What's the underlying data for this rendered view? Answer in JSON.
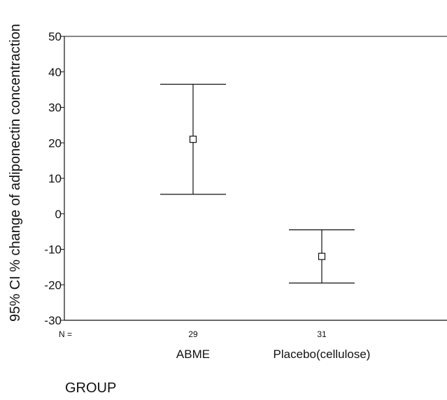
{
  "chart_data": {
    "type": "errorbar",
    "title": "",
    "xlabel": "GROUP",
    "ylabel": "95% CI % change of adiponectin concentraction",
    "ylim": [
      -30,
      50
    ],
    "yticks": [
      50,
      40,
      30,
      20,
      10,
      0,
      -10,
      -20,
      -30
    ],
    "ytick_labels": [
      "50",
      "40",
      "30",
      "20",
      "10",
      "0",
      "-10",
      "-20",
      "-30"
    ],
    "n_label": "N =",
    "categories": [
      "ABME",
      "Placebo(cellulose)"
    ],
    "n_values": [
      "29",
      "31"
    ],
    "points": [
      {
        "category": "ABME",
        "n": "29",
        "mean": 21,
        "lower": 5.5,
        "upper": 36.5
      },
      {
        "category": "Placebo(cellulose)",
        "n": "31",
        "mean": -12,
        "lower": -19.5,
        "upper": -4.5
      }
    ],
    "grid": false,
    "legend": "none",
    "colors": {
      "line": "#111111",
      "background": "#ffffff"
    }
  }
}
